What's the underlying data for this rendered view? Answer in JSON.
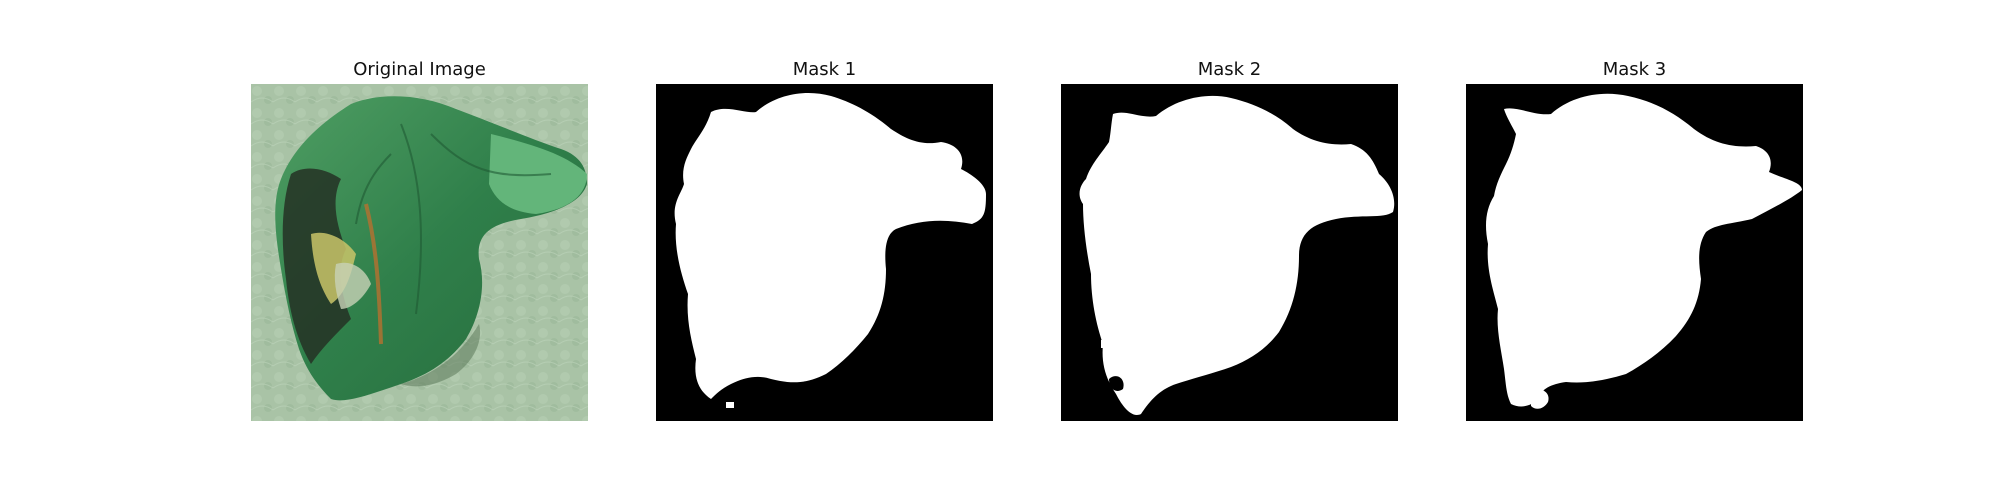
{
  "panels": [
    {
      "title": "Original Image"
    },
    {
      "title": "Mask 1"
    },
    {
      "title": "Mask 2"
    },
    {
      "title": "Mask 3"
    }
  ],
  "colors": {
    "mask_background": "#000000",
    "mask_foreground": "#ffffff",
    "background_texture": "#a9c3a6",
    "leaf_green": "#3f8f57",
    "leaf_light_green": "#63b57a",
    "leaf_dark": "#243124",
    "leaf_yellow": "#c9c468",
    "leaf_orange": "#b7702f"
  }
}
